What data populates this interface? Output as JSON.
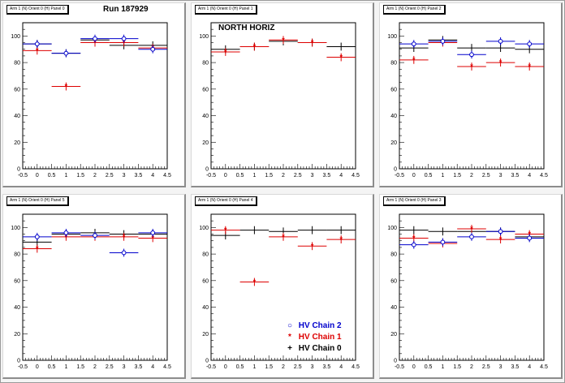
{
  "run_label": "Run 187929",
  "annotation": "NORTH HORIZ",
  "legend": {
    "items": [
      {
        "label": "HV Chain 2",
        "color": "#0000cc",
        "marker": "circle"
      },
      {
        "label": "HV Chain 1",
        "color": "#dd0000",
        "marker": "star"
      },
      {
        "label": "HV Chain 0",
        "color": "#000000",
        "marker": "cross"
      }
    ],
    "placement": "bottom-right"
  },
  "chart_data": [
    {
      "type": "scatter",
      "title": "Arm 1 (N) Orient 0 (H) Panel 0",
      "xlim": [
        -0.5,
        4.5
      ],
      "ylim": [
        0,
        110
      ],
      "xticks": [
        "-0.5",
        "0",
        "0.5",
        "1",
        "1.5",
        "2",
        "2.5",
        "3",
        "3.5",
        "4",
        "4.5"
      ],
      "yticks": [
        "0",
        "20",
        "40",
        "60",
        "80",
        "100"
      ],
      "series": [
        {
          "name": "HV Chain 2",
          "x": [
            0,
            1,
            2,
            3,
            4
          ],
          "y": [
            94,
            87,
            98,
            98,
            90
          ]
        },
        {
          "name": "HV Chain 1",
          "x": [
            0,
            1,
            2,
            3,
            4
          ],
          "y": [
            89,
            62,
            95,
            95,
            91
          ]
        },
        {
          "name": "HV Chain 0",
          "x": [
            0,
            1,
            2,
            3,
            4
          ],
          "y": [
            94,
            87,
            97,
            93,
            93
          ]
        }
      ]
    },
    {
      "type": "scatter",
      "title": "Arm 1 (N) Orient 0 (H) Panel 1",
      "xlim": [
        -0.5,
        4.5
      ],
      "ylim": [
        0,
        110
      ],
      "xticks": [
        "-0.5",
        "0",
        "0.5",
        "1",
        "1.5",
        "2",
        "2.5",
        "3",
        "3.5",
        "4",
        "4.5"
      ],
      "yticks": [
        "0",
        "20",
        "40",
        "60",
        "80",
        "100"
      ],
      "series": [
        {
          "name": "HV Chain 2",
          "x": [],
          "y": []
        },
        {
          "name": "HV Chain 1",
          "x": [
            0,
            1,
            2,
            3,
            4
          ],
          "y": [
            88,
            92,
            97,
            95,
            84
          ]
        },
        {
          "name": "HV Chain 0",
          "x": [
            0,
            1,
            2,
            3,
            4
          ],
          "y": [
            90,
            92,
            96,
            95,
            92
          ]
        }
      ]
    },
    {
      "type": "scatter",
      "title": "Arm 1 (N) Orient 0 (H) Panel 2",
      "xlim": [
        -0.5,
        4.5
      ],
      "ylim": [
        0,
        110
      ],
      "xticks": [
        "-0.5",
        "0",
        "0.5",
        "1",
        "1.5",
        "2",
        "2.5",
        "3",
        "3.5",
        "4",
        "4.5"
      ],
      "yticks": [
        "0",
        "20",
        "40",
        "60",
        "80",
        "100"
      ],
      "series": [
        {
          "name": "HV Chain 2",
          "x": [
            0,
            1,
            2,
            3,
            4
          ],
          "y": [
            94,
            96,
            86,
            96,
            94
          ]
        },
        {
          "name": "HV Chain 1",
          "x": [
            0,
            1,
            2,
            3,
            4
          ],
          "y": [
            82,
            95,
            77,
            80,
            77
          ]
        },
        {
          "name": "HV Chain 0",
          "x": [
            0,
            1,
            2,
            3,
            4
          ],
          "y": [
            91,
            97,
            91,
            91,
            90
          ]
        }
      ]
    },
    {
      "type": "scatter",
      "title": "Arm 1 (N) Orient 0 (H) Panel 5",
      "xlim": [
        -0.5,
        4.5
      ],
      "ylim": [
        0,
        110
      ],
      "xticks": [
        "-0.5",
        "0",
        "0.5",
        "1",
        "1.5",
        "2",
        "2.5",
        "3",
        "3.5",
        "4",
        "4.5"
      ],
      "yticks": [
        "0",
        "20",
        "40",
        "60",
        "80",
        "100"
      ],
      "series": [
        {
          "name": "HV Chain 2",
          "x": [
            0,
            1,
            2,
            3,
            4
          ],
          "y": [
            93,
            96,
            94,
            81,
            96
          ]
        },
        {
          "name": "HV Chain 1",
          "x": [
            0,
            1,
            2,
            3,
            4
          ],
          "y": [
            84,
            93,
            93,
            93,
            92
          ]
        },
        {
          "name": "HV Chain 0",
          "x": [
            0,
            1,
            2,
            3,
            4
          ],
          "y": [
            89,
            95,
            96,
            95,
            95
          ]
        }
      ]
    },
    {
      "type": "scatter",
      "title": "Arm 1 (N) Orient 0 (H) Panel 4",
      "xlim": [
        -0.5,
        4.5
      ],
      "ylim": [
        0,
        110
      ],
      "xticks": [
        "-0.5",
        "0",
        "0.5",
        "1",
        "1.5",
        "2",
        "2.5",
        "3",
        "3.5",
        "4",
        "4.5"
      ],
      "yticks": [
        "0",
        "20",
        "40",
        "60",
        "80",
        "100"
      ],
      "series": [
        {
          "name": "HV Chain 2",
          "x": [],
          "y": []
        },
        {
          "name": "HV Chain 1",
          "x": [
            0,
            1,
            2,
            3,
            4
          ],
          "y": [
            98,
            59,
            93,
            86,
            91
          ]
        },
        {
          "name": "HV Chain 0",
          "x": [
            0,
            1,
            2,
            3,
            4
          ],
          "y": [
            94,
            98,
            97,
            98,
            98
          ]
        }
      ]
    },
    {
      "type": "scatter",
      "title": "Arm 1 (N) Orient 0 (H) Panel 3",
      "xlim": [
        -0.5,
        4.5
      ],
      "ylim": [
        0,
        110
      ],
      "xticks": [
        "-0.5",
        "0",
        "0.5",
        "1",
        "1.5",
        "2",
        "2.5",
        "3",
        "3.5",
        "4",
        "4.5"
      ],
      "yticks": [
        "0",
        "20",
        "40",
        "60",
        "80",
        "100"
      ],
      "series": [
        {
          "name": "HV Chain 2",
          "x": [
            0,
            1,
            2,
            3,
            4
          ],
          "y": [
            87,
            89,
            93,
            97,
            92
          ]
        },
        {
          "name": "HV Chain 1",
          "x": [
            0,
            1,
            2,
            3,
            4
          ],
          "y": [
            92,
            88,
            99,
            91,
            95
          ]
        },
        {
          "name": "HV Chain 0",
          "x": [
            0,
            1,
            2,
            3,
            4
          ],
          "y": [
            98,
            97,
            97,
            97,
            93
          ]
        }
      ]
    }
  ]
}
